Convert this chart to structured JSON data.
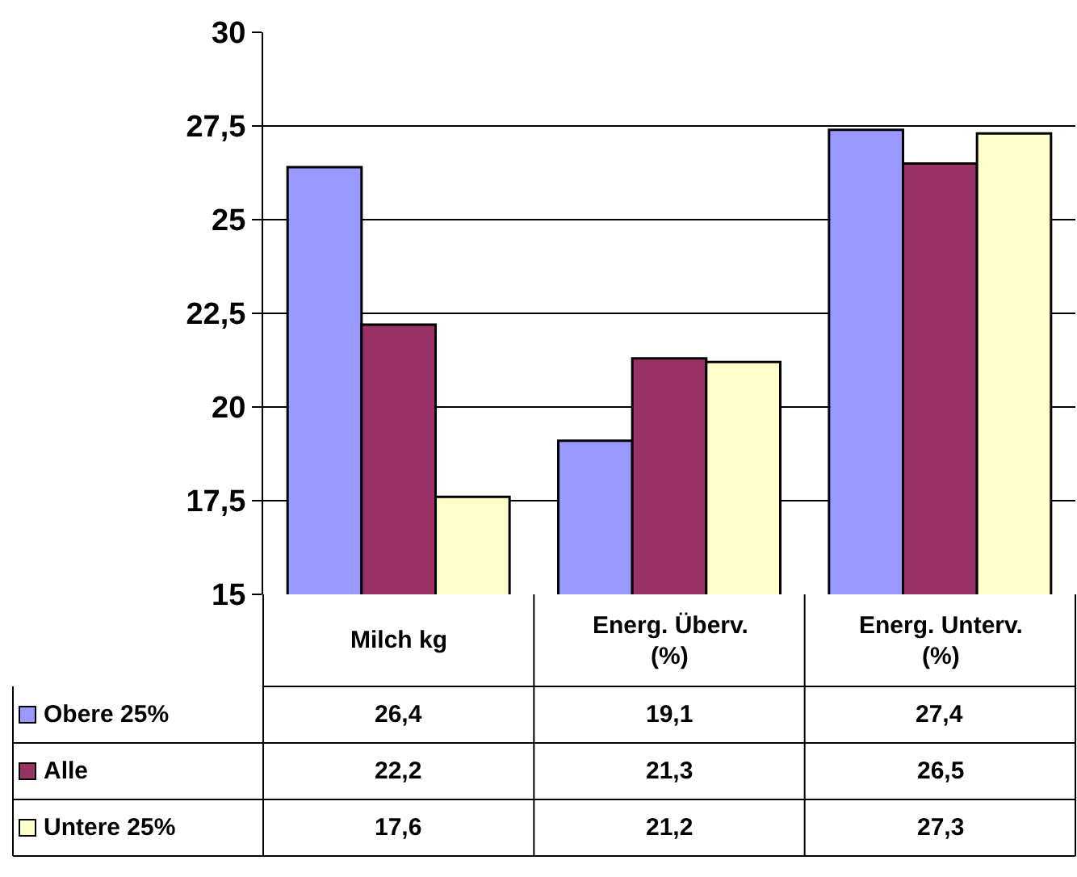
{
  "chart_data": {
    "type": "bar",
    "categories": [
      "Milch kg",
      "Energ. Überv. (%)",
      "Energ. Unterv. (%)"
    ],
    "series": [
      {
        "name": "Obere 25%",
        "color": "#9999ff",
        "values": [
          26.4,
          19.1,
          27.4
        ],
        "value_labels": [
          "26,4",
          "19,1",
          "27,4"
        ]
      },
      {
        "name": "Alle",
        "color": "#993366",
        "values": [
          22.2,
          21.3,
          26.5
        ],
        "value_labels": [
          "22,2",
          "21,3",
          "26,5"
        ]
      },
      {
        "name": "Untere 25%",
        "color": "#ffffcc",
        "values": [
          17.6,
          21.2,
          27.3
        ],
        "value_labels": [
          "17,6",
          "21,2",
          "27,3"
        ]
      }
    ],
    "ylim": [
      15,
      30
    ],
    "yticks": [
      15,
      {
        "value": 17.5,
        "label": "17,5"
      },
      20,
      {
        "value": 22.5,
        "label": "22,5"
      },
      25,
      {
        "value": 27.5,
        "label": "27,5"
      },
      30
    ],
    "grid": "y",
    "legend": "bottom left"
  }
}
